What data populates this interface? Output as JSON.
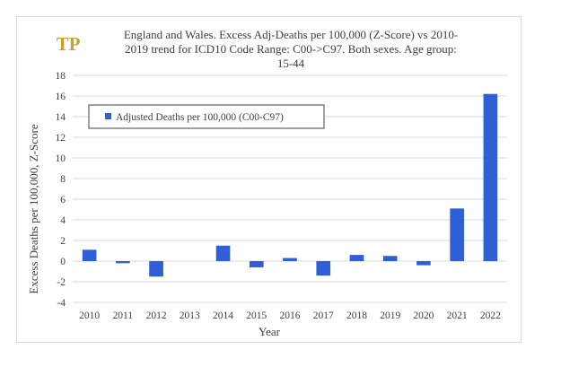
{
  "logo": {
    "text": "TP",
    "color": "#c9a227"
  },
  "chart_data": {
    "type": "bar",
    "title_lines": [
      "England and Wales. Excess Adj-Deaths per 100,000 (Z-Score) vs 2010-",
      "2019 trend for ICD10 Code Range: C00->C97. Both sexes. Age group:",
      "15-44"
    ],
    "xlabel": "Year",
    "ylabel": "Excess Deaths per 100,000, Z-Score",
    "categories": [
      "2010",
      "2011",
      "2012",
      "2013",
      "2014",
      "2015",
      "2016",
      "2017",
      "2018",
      "2019",
      "2020",
      "2021",
      "2022"
    ],
    "series": [
      {
        "name": "Adjusted Deaths per 100,000 (C00-C97)",
        "values": [
          1.1,
          -0.2,
          -1.5,
          0,
          1.5,
          -0.6,
          0.3,
          -1.4,
          0.6,
          0.5,
          -0.4,
          5.1,
          16.2
        ],
        "color": "#2e5fd6"
      }
    ],
    "ylim": [
      -4,
      18
    ],
    "yticks": [
      -4,
      -2,
      0,
      2,
      4,
      6,
      8,
      10,
      12,
      14,
      16,
      18
    ],
    "grid": true,
    "legend_position": "top-left inside plot"
  }
}
